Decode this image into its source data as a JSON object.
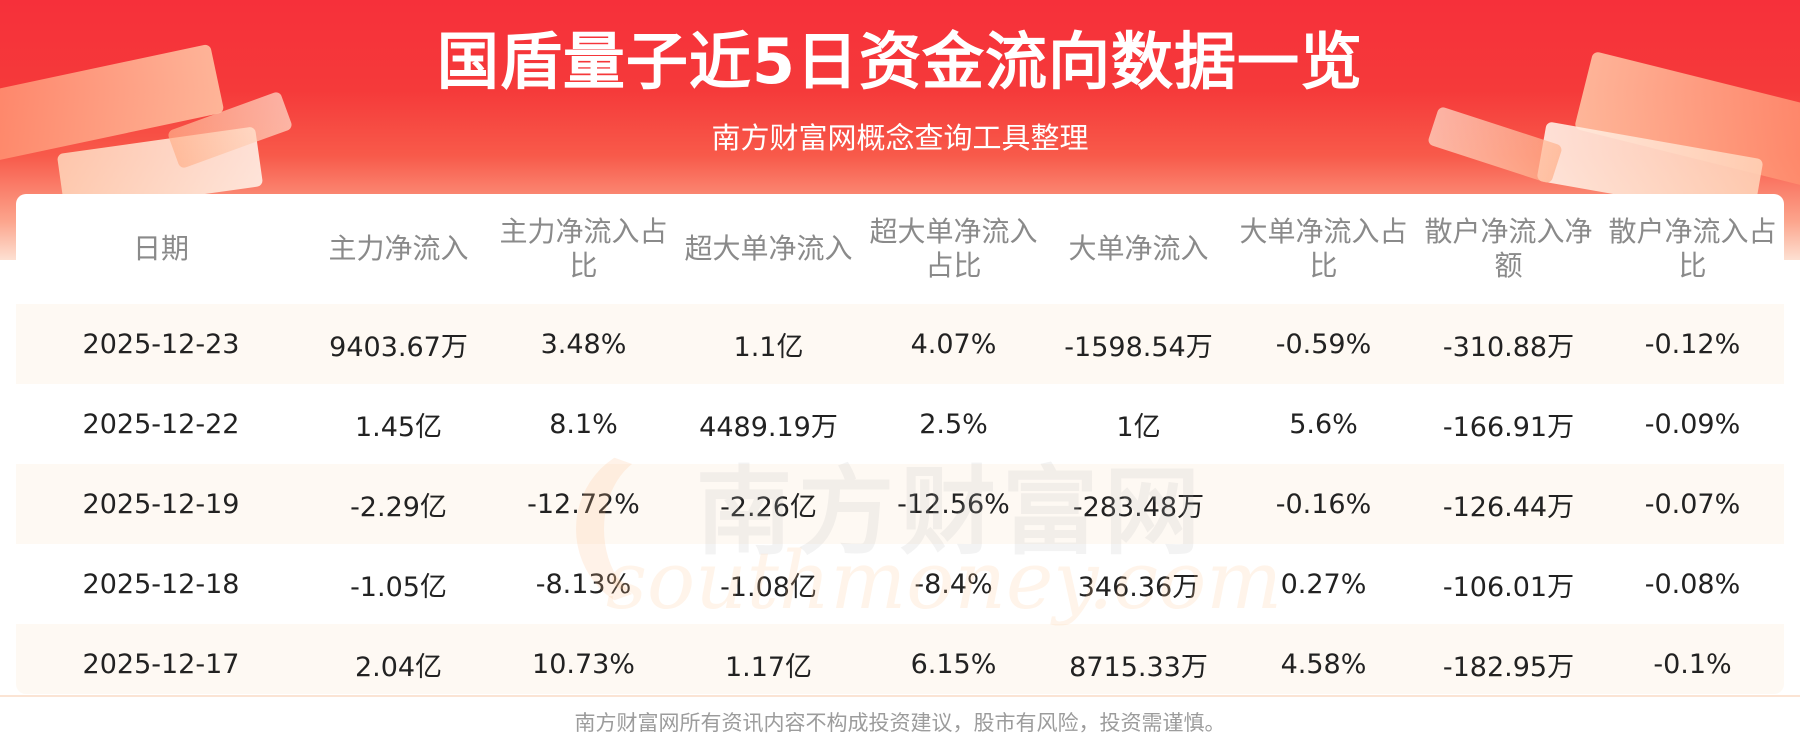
{
  "header": {
    "title": "国盾量子近5日资金流向数据一览",
    "subtitle": "南方财富网概念查询工具整理"
  },
  "watermark": {
    "chinese": "南方财富网",
    "english": "southmoney.com"
  },
  "table": {
    "headers": [
      "日期",
      "主力净流入",
      "主力净流入占比",
      "超大单净流入",
      "超大单净流入占比",
      "大单净流入",
      "大单净流入占比",
      "散户净流入净额",
      "散户净流入占比"
    ],
    "rows": [
      [
        "2025-12-23",
        "9403.67万",
        "3.48%",
        "1.1亿",
        "4.07%",
        "-1598.54万",
        "-0.59%",
        "-310.88万",
        "-0.12%"
      ],
      [
        "2025-12-22",
        "1.45亿",
        "8.1%",
        "4489.19万",
        "2.5%",
        "1亿",
        "5.6%",
        "-166.91万",
        "-0.09%"
      ],
      [
        "2025-12-19",
        "-2.29亿",
        "-12.72%",
        "-2.26亿",
        "-12.56%",
        "-283.48万",
        "-0.16%",
        "-126.44万",
        "-0.07%"
      ],
      [
        "2025-12-18",
        "-1.05亿",
        "-8.13%",
        "-1.08亿",
        "-8.4%",
        "346.36万",
        "0.27%",
        "-106.01万",
        "-0.08%"
      ],
      [
        "2025-12-17",
        "2.04亿",
        "10.73%",
        "1.17亿",
        "6.15%",
        "8715.33万",
        "4.58%",
        "-182.95万",
        "-0.1%"
      ]
    ]
  },
  "footer": {
    "disclaimer": "南方财富网所有资讯内容不构成投资建议，股市有风险，投资需谨慎。"
  },
  "colors": {
    "banner_red": "#f6303a",
    "header_text": "#8a8a8a",
    "cell_text": "#222222",
    "row_tint": "#fef8f2"
  }
}
